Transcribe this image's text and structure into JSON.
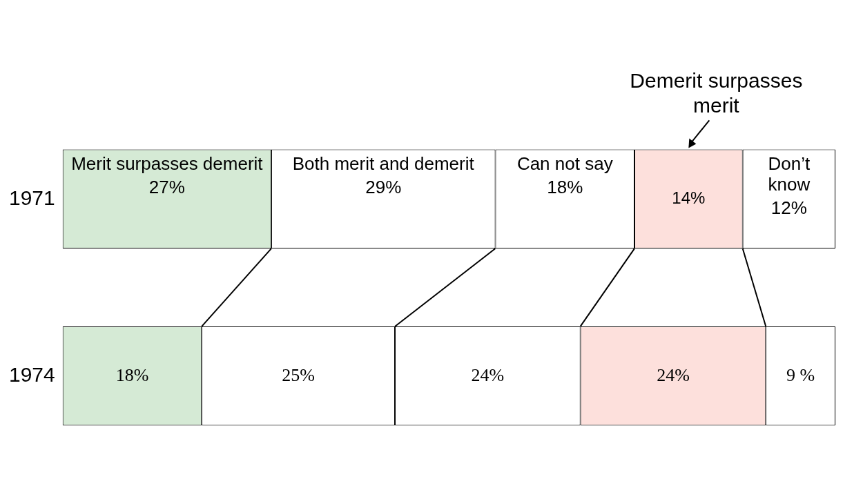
{
  "chart_data": {
    "type": "bar",
    "orientation": "horizontal",
    "stacked": true,
    "categories": [
      "1971",
      "1974"
    ],
    "series": [
      {
        "name": "Merit surpasses demerit",
        "color": "#d5ead5",
        "values": [
          27,
          18
        ],
        "value_labels": [
          "27%",
          "18%"
        ]
      },
      {
        "name": "Both merit and demerit",
        "color": "#ffffff",
        "values": [
          29,
          25
        ],
        "value_labels": [
          "29%",
          "25%"
        ]
      },
      {
        "name": "Can not say",
        "color": "#ffffff",
        "values": [
          18,
          24
        ],
        "value_labels": [
          "18%",
          "24%"
        ]
      },
      {
        "name": "Demerit surpasses merit",
        "color": "#fde0dc",
        "values": [
          14,
          24
        ],
        "value_labels": [
          "14%",
          "24%"
        ]
      },
      {
        "name": "Don’t know",
        "color": "#ffffff",
        "values": [
          12,
          9
        ],
        "value_labels": [
          "12%",
          "9 %"
        ]
      }
    ],
    "tick_labels": "y",
    "grid": false,
    "legend": false
  }
}
